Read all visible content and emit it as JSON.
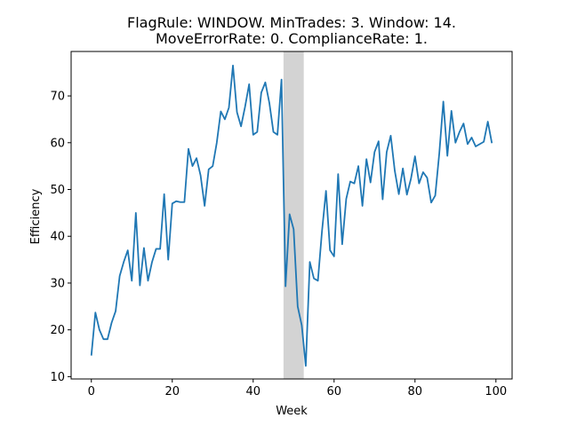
{
  "chart_data": {
    "type": "line",
    "title_line1": "FlagRule: WINDOW. MinTrades: 3. Window: 14.",
    "title_line2": "MoveErrorRate: 0. ComplianceRate: 1.",
    "xlabel": "Week",
    "ylabel": "Efficiency",
    "xlim": [
      -5,
      104
    ],
    "ylim": [
      9.5,
      79.5
    ],
    "xticks": [
      0,
      20,
      40,
      60,
      80,
      100
    ],
    "yticks": [
      10,
      20,
      30,
      40,
      50,
      60,
      70
    ],
    "grid": false,
    "line_color": "#1f77b4",
    "shaded_region": {
      "x0": 47.5,
      "x1": 52.5,
      "color": "#d3d3d3"
    },
    "series": [
      {
        "x": [
          0,
          1,
          2,
          3,
          4,
          5,
          6,
          7,
          8,
          9,
          10,
          11,
          12,
          13,
          14,
          15,
          16,
          17,
          18,
          19,
          20,
          21,
          22,
          23,
          24,
          25,
          26,
          27,
          28,
          29,
          30,
          31,
          32,
          33,
          34,
          35,
          36,
          37,
          38,
          39,
          40,
          41,
          42,
          43,
          44,
          45,
          46,
          47,
          48,
          49,
          50,
          51,
          52,
          53,
          54,
          55,
          56,
          57,
          58,
          59,
          60,
          61,
          62,
          63,
          64,
          65,
          66,
          67,
          68,
          69,
          70,
          71,
          72,
          73,
          74,
          75,
          76,
          77,
          78,
          79,
          80,
          81,
          82,
          83,
          84,
          85,
          86,
          87,
          88,
          89,
          90,
          91,
          92,
          93,
          94,
          95,
          96,
          97,
          98,
          99
        ],
        "values": [
          14.5,
          23.7,
          20.0,
          18.0,
          18.0,
          21.5,
          24.0,
          31.5,
          34.5,
          37.0,
          30.5,
          45.0,
          29.5,
          37.5,
          30.5,
          34.5,
          37.3,
          37.3,
          49.0,
          35.0,
          47.0,
          47.5,
          47.3,
          47.3,
          58.7,
          55.0,
          56.7,
          53.0,
          46.5,
          54.3,
          55.0,
          60.0,
          66.7,
          65.0,
          67.5,
          76.5,
          66.5,
          63.5,
          67.7,
          72.5,
          61.7,
          62.3,
          70.7,
          72.9,
          68.5,
          62.3,
          61.7,
          73.5,
          29.3,
          44.7,
          41.5,
          25.0,
          21.0,
          12.3,
          34.5,
          31.0,
          30.5,
          41.0,
          49.7,
          37.0,
          35.7,
          53.3,
          38.3,
          48.0,
          51.7,
          51.3,
          55.0,
          46.5,
          56.5,
          51.5,
          58.0,
          60.3,
          47.9,
          58.0,
          61.5,
          54.0,
          49.0,
          54.5,
          48.9,
          52.3,
          57.1,
          51.3,
          53.7,
          52.5,
          47.2,
          48.7,
          57.7,
          68.8,
          57.2,
          66.8,
          60.0,
          62.3,
          64.1,
          59.7,
          61.1,
          59.2,
          59.7,
          60.2,
          64.5,
          59.9
        ]
      }
    ]
  }
}
